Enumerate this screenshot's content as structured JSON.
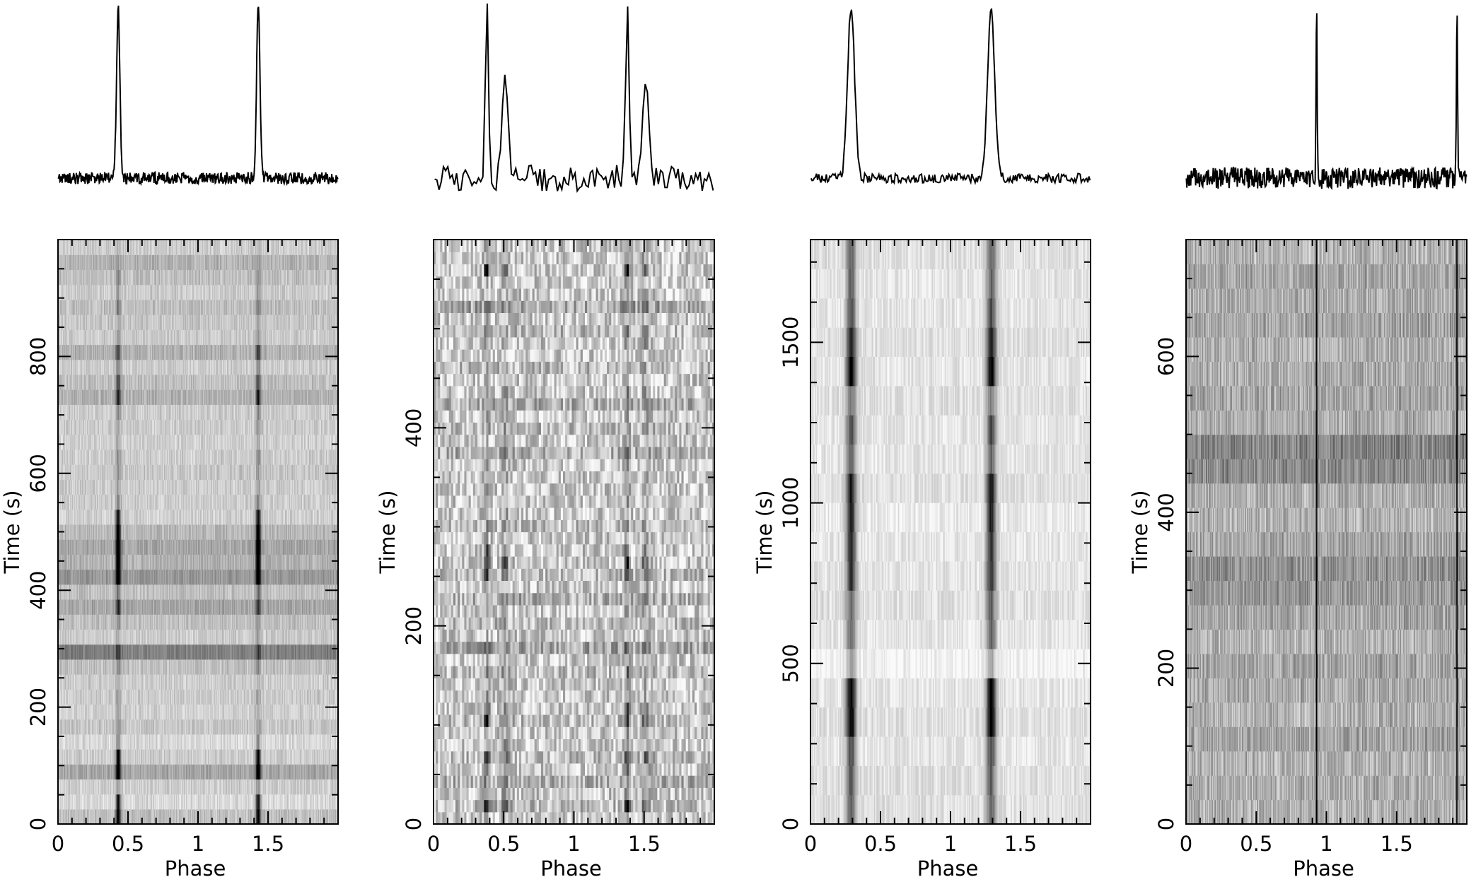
{
  "chart_data": [
    {
      "type": "heatmap",
      "title": "",
      "xlabel": "Phase",
      "ylabel": "Time  (s)",
      "xlim": [
        0,
        2
      ],
      "ylim": [
        0,
        1000
      ],
      "x_ticks": [
        0,
        0.5,
        1,
        1.5
      ],
      "x_tick_labels": [
        "0",
        "0.5",
        "1",
        "1.5"
      ],
      "y_ticks": [
        0,
        200,
        400,
        600,
        800
      ],
      "y_tick_labels": [
        "0",
        "200",
        "400",
        "600",
        "800"
      ],
      "pulse_phases": [
        0.43,
        1.43
      ],
      "profile_bins": 512,
      "subintegrations": 39,
      "pulse_peak_width": 0.012,
      "subint_pulse_strength": [
        0.8,
        0.8,
        0.2,
        0.8,
        0.8,
        0.3,
        0.2,
        0.2,
        0.2,
        0.1,
        0.2,
        0.3,
        0.2,
        0.2,
        0.5,
        0.3,
        0.8,
        0.9,
        0.9,
        0.9,
        0.8,
        0.3,
        0.2,
        0.2,
        0.3,
        0.2,
        0.2,
        0.3,
        0.6,
        0.5,
        0.3,
        0.5,
        0.2,
        0.1,
        0.3,
        0.2,
        0.2,
        0.1,
        0.1
      ],
      "subint_background": [
        0.25,
        0.15,
        0.2,
        0.35,
        0.2,
        0.15,
        0.22,
        0.18,
        0.2,
        0.2,
        0.25,
        0.5,
        0.2,
        0.25,
        0.35,
        0.25,
        0.4,
        0.3,
        0.35,
        0.28,
        0.18,
        0.2,
        0.2,
        0.22,
        0.2,
        0.18,
        0.2,
        0.2,
        0.3,
        0.25,
        0.2,
        0.3,
        0.2,
        0.22,
        0.25,
        0.2,
        0.25,
        0.3,
        0.2
      ],
      "background_noise": 0.1
    },
    {
      "type": "heatmap",
      "title": "",
      "xlabel": "Phase",
      "ylabel": "Time  (s)",
      "xlim": [
        0,
        2
      ],
      "ylim": [
        0,
        590
      ],
      "x_ticks": [
        0,
        0.5,
        1,
        1.5
      ],
      "x_tick_labels": [
        "0",
        "0.5",
        "1",
        "1.5"
      ],
      "y_ticks": [
        0,
        200,
        400
      ],
      "y_tick_labels": [
        "0",
        "200",
        "400"
      ],
      "pulse_phases": [
        0.38,
        1.38
      ],
      "profile_bins": 128,
      "subintegrations": 48,
      "pulse_peak_width": 0.012,
      "secondary_component": {
        "phase_offset": 0.13,
        "relative_height": 0.55,
        "width": 0.02
      },
      "subint_pulse_strength": [
        0.2,
        0.8,
        0.3,
        0.2,
        0.4,
        0.6,
        0.3,
        0.2,
        0.7,
        0.5,
        0.2,
        0.2,
        0.3,
        0.2,
        0.3,
        0.1,
        0.2,
        0.2,
        0.2,
        0.2,
        0.6,
        0.7,
        0.5,
        0.2,
        0.2,
        0.3,
        0.2,
        0.2,
        0.2,
        0.2,
        0.2,
        0.1,
        0.2,
        0.2,
        0.2,
        0.3,
        0.2,
        0.2,
        0.1,
        0.3,
        0.2,
        0.2,
        0.2,
        0.1,
        0.2,
        0.9,
        0.3,
        0.2
      ],
      "subint_background": [
        0.2,
        0.25,
        0.2,
        0.3,
        0.2,
        0.25,
        0.2,
        0.2,
        0.25,
        0.2,
        0.2,
        0.2,
        0.25,
        0.2,
        0.35,
        0.2,
        0.25,
        0.2,
        0.3,
        0.2,
        0.25,
        0.2,
        0.2,
        0.2,
        0.25,
        0.2,
        0.2,
        0.2,
        0.2,
        0.2,
        0.3,
        0.2,
        0.25,
        0.2,
        0.3,
        0.2,
        0.2,
        0.25,
        0.2,
        0.2,
        0.25,
        0.2,
        0.35,
        0.2,
        0.2,
        0.2,
        0.2,
        0.2
      ],
      "background_noise": 0.22
    },
    {
      "type": "heatmap",
      "title": "",
      "xlabel": "Phase",
      "ylabel": "Time  (s)",
      "xlim": [
        0,
        2
      ],
      "ylim": [
        0,
        1820
      ],
      "x_ticks": [
        0,
        0.5,
        1,
        1.5
      ],
      "x_tick_labels": [
        "0",
        "0.5",
        "1",
        "1.5"
      ],
      "y_ticks": [
        0,
        500,
        1000,
        1500
      ],
      "y_tick_labels": [
        "0",
        "500",
        "1000",
        "1500"
      ],
      "pulse_phases": [
        0.29,
        1.29
      ],
      "profile_bins": 256,
      "subintegrations": 20,
      "pulse_peak_width": 0.025,
      "subint_pulse_strength": [
        0.5,
        0.5,
        0.6,
        0.9,
        0.9,
        0.3,
        0.5,
        0.5,
        0.7,
        0.7,
        0.8,
        0.8,
        0.5,
        0.6,
        0.4,
        0.9,
        0.8,
        0.6,
        0.5,
        0.5
      ],
      "subint_background": [
        0.12,
        0.12,
        0.1,
        0.12,
        0.1,
        0.05,
        0.1,
        0.12,
        0.1,
        0.1,
        0.08,
        0.12,
        0.1,
        0.1,
        0.12,
        0.1,
        0.12,
        0.1,
        0.1,
        0.12
      ],
      "background_noise": 0.08
    },
    {
      "type": "heatmap",
      "title": "",
      "xlabel": "Phase",
      "ylabel": "Time  (s)",
      "xlim": [
        0,
        2
      ],
      "ylim": [
        0,
        750
      ],
      "x_ticks": [
        0,
        0.5,
        1,
        1.5
      ],
      "x_tick_labels": [
        "0",
        "0.5",
        "1",
        "1.5"
      ],
      "y_ticks": [
        0,
        200,
        400,
        600
      ],
      "y_tick_labels": [
        "0",
        "200",
        "400",
        "600"
      ],
      "pulse_phases": [
        0.93,
        1.93
      ],
      "profile_bins": 512,
      "subintegrations": 24,
      "pulse_peak_width": 0.004,
      "subint_pulse_strength": [
        0.8,
        0.8,
        0.8,
        0.8,
        0.8,
        0.8,
        0.8,
        0.8,
        0.8,
        0.8,
        0.8,
        0.8,
        0.8,
        0.8,
        0.8,
        0.8,
        0.8,
        0.8,
        0.8,
        0.8,
        0.8,
        0.8,
        0.8,
        0.8
      ],
      "subint_background": [
        0.3,
        0.32,
        0.3,
        0.35,
        0.3,
        0.33,
        0.35,
        0.3,
        0.35,
        0.4,
        0.42,
        0.35,
        0.3,
        0.32,
        0.45,
        0.48,
        0.32,
        0.35,
        0.32,
        0.3,
        0.35,
        0.32,
        0.35,
        0.3
      ],
      "background_noise": 0.18
    }
  ]
}
